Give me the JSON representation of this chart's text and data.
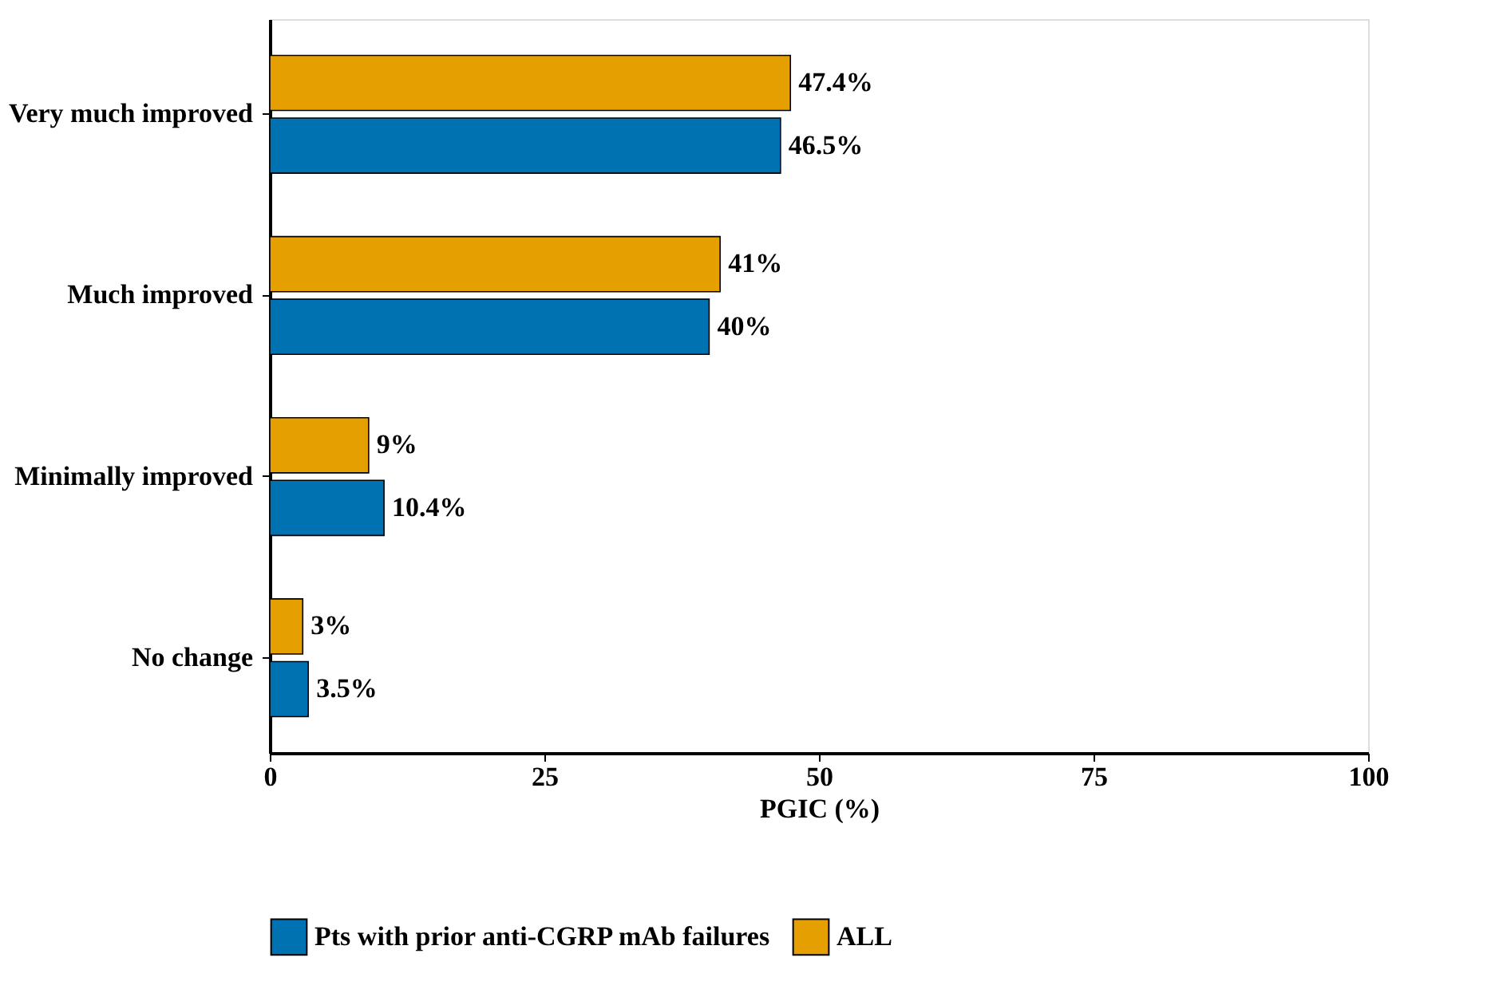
{
  "chart_data": {
    "type": "bar",
    "orientation": "horizontal",
    "xlabel": "PGIC (%)",
    "categories": [
      "Very much improved",
      "Much improved",
      "Minimally improved",
      "No change"
    ],
    "series": [
      {
        "name": "Pts with prior anti-CGRP mAb failures",
        "color": "#0072b2",
        "values": [
          46.5,
          40,
          10.4,
          3.5
        ],
        "value_labels": [
          "46.5%",
          "40%",
          "10.4%",
          "3.5%"
        ]
      },
      {
        "name": "ALL",
        "color": "#e69f00",
        "values": [
          47.4,
          41,
          9,
          3
        ],
        "value_labels": [
          "47.4%",
          "41%",
          "9%",
          "3%"
        ]
      }
    ],
    "xlim": [
      0,
      100
    ],
    "xticks": [
      0,
      25,
      50,
      75,
      100
    ],
    "grid": false,
    "legend": "bottom"
  }
}
